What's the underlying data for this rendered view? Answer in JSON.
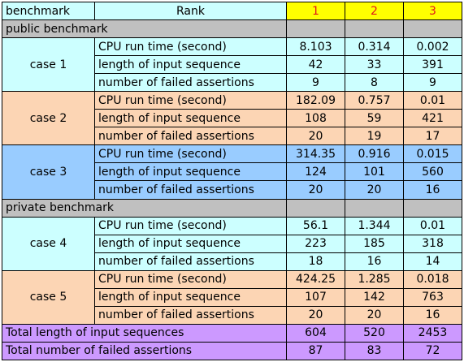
{
  "header": {
    "benchmark_label": "benchmark",
    "rank_label": "Rank",
    "ranks": [
      "1",
      "2",
      "3"
    ]
  },
  "sections": [
    {
      "title": "public benchmark",
      "cases": [
        {
          "name": "case 1",
          "color": "#ccffff",
          "rows": [
            {
              "metric": "CPU run time (second)",
              "values": [
                "8.103",
                "0.314",
                "0.002"
              ]
            },
            {
              "metric": "length of input sequence",
              "values": [
                "42",
                "33",
                "391"
              ]
            },
            {
              "metric": "number of failed assertions",
              "values": [
                "9",
                "8",
                "9"
              ]
            }
          ]
        },
        {
          "name": "case 2",
          "color": "#fcd5b4",
          "rows": [
            {
              "metric": "CPU run time (second)",
              "values": [
                "182.09",
                "0.757",
                "0.01"
              ]
            },
            {
              "metric": "length of input sequence",
              "values": [
                "108",
                "59",
                "421"
              ]
            },
            {
              "metric": "number of failed assertions",
              "values": [
                "20",
                "19",
                "17"
              ]
            }
          ]
        },
        {
          "name": "case 3",
          "color": "#99ccff",
          "rows": [
            {
              "metric": "CPU run time (second)",
              "values": [
                "314.35",
                "0.916",
                "0.015"
              ]
            },
            {
              "metric": "length of input sequence",
              "values": [
                "124",
                "101",
                "560"
              ]
            },
            {
              "metric": "number of failed assertions",
              "values": [
                "20",
                "20",
                "16"
              ]
            }
          ]
        }
      ]
    },
    {
      "title": "private benchmark",
      "cases": [
        {
          "name": "case 4",
          "color": "#ccffff",
          "rows": [
            {
              "metric": "CPU run time (second)",
              "values": [
                "56.1",
                "1.344",
                "0.01"
              ]
            },
            {
              "metric": "length of input sequence",
              "values": [
                "223",
                "185",
                "318"
              ]
            },
            {
              "metric": "number of failed assertions",
              "values": [
                "18",
                "16",
                "14"
              ]
            }
          ]
        },
        {
          "name": "case 5",
          "color": "#fcd5b4",
          "rows": [
            {
              "metric": "CPU run time (second)",
              "values": [
                "424.25",
                "1.285",
                "0.018"
              ]
            },
            {
              "metric": "length of input sequence",
              "values": [
                "107",
                "142",
                "763"
              ]
            },
            {
              "metric": "number of failed assertions",
              "values": [
                "20",
                "20",
                "16"
              ]
            }
          ]
        }
      ]
    }
  ],
  "totals": [
    {
      "label": "Total length of input sequences",
      "values": [
        "604",
        "520",
        "2453"
      ]
    },
    {
      "label": "Total number of failed assertions",
      "values": [
        "87",
        "83",
        "72"
      ]
    }
  ],
  "colors": {
    "header_bg": "#ccffff",
    "rank_bg": "#ffff00",
    "rank_text": "#e0161c",
    "section_bg": "#c0c0c0",
    "totals_bg": "#cc99ff"
  }
}
